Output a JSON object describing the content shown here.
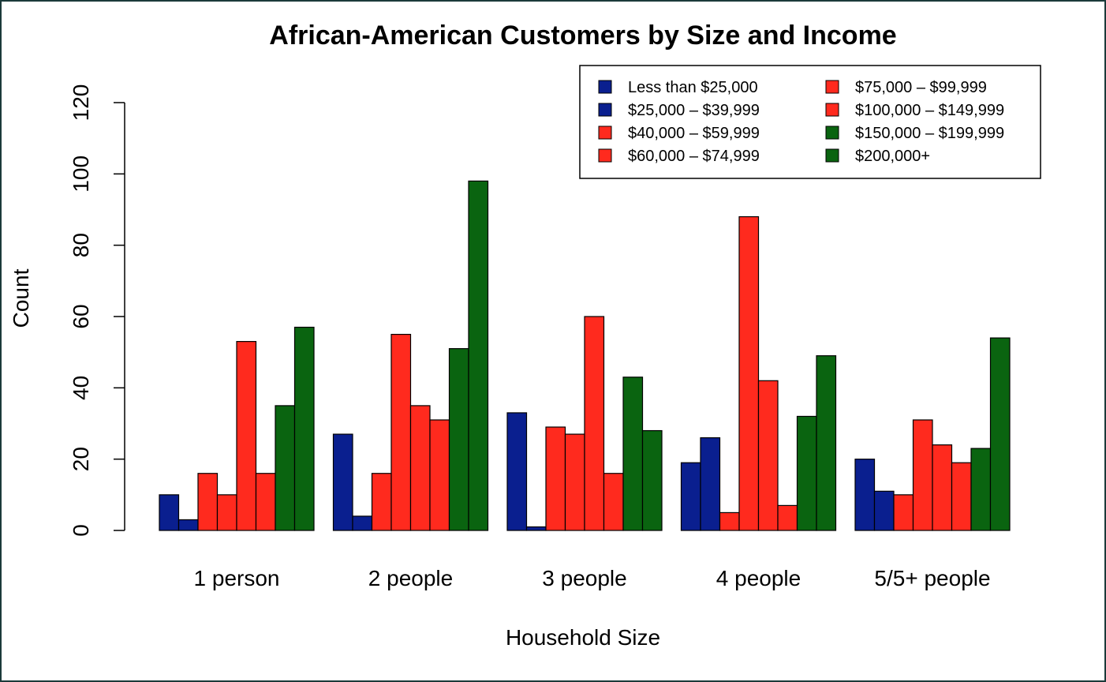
{
  "chart_data": {
    "type": "bar",
    "title": "African-American Customers by Size and Income",
    "xlabel": "Household Size",
    "ylabel": "Count",
    "categories": [
      "1 person",
      "2 people",
      "3 people",
      "4 people",
      "5/5+ people"
    ],
    "ylim": [
      0,
      120
    ],
    "yticks": [
      0,
      20,
      40,
      60,
      80,
      100,
      120
    ],
    "legend_position": "top-right",
    "series": [
      {
        "name": "Less than $25,000",
        "color": "#0a1f8f",
        "values": [
          10,
          27,
          33,
          19,
          20
        ]
      },
      {
        "name": "$25,000 – $39,999",
        "color": "#0a1f8f",
        "values": [
          3,
          4,
          1,
          26,
          11
        ]
      },
      {
        "name": "$40,000 – $59,999",
        "color": "#ff2a1e",
        "values": [
          16,
          16,
          29,
          5,
          10
        ]
      },
      {
        "name": "$60,000 – $74,999",
        "color": "#ff2a1e",
        "values": [
          10,
          55,
          27,
          88,
          31
        ]
      },
      {
        "name": "$75,000 – $99,999",
        "color": "#ff2a1e",
        "values": [
          53,
          35,
          60,
          42,
          24
        ]
      },
      {
        "name": "$100,000 – $149,999",
        "color": "#ff2a1e",
        "values": [
          16,
          31,
          16,
          7,
          19
        ]
      },
      {
        "name": "$150,000 – $199,999",
        "color": "#0a6410",
        "values": [
          35,
          51,
          43,
          32,
          23
        ]
      },
      {
        "name": "$200,000+",
        "color": "#0a6410",
        "values": [
          57,
          98,
          28,
          49,
          54
        ]
      }
    ]
  }
}
